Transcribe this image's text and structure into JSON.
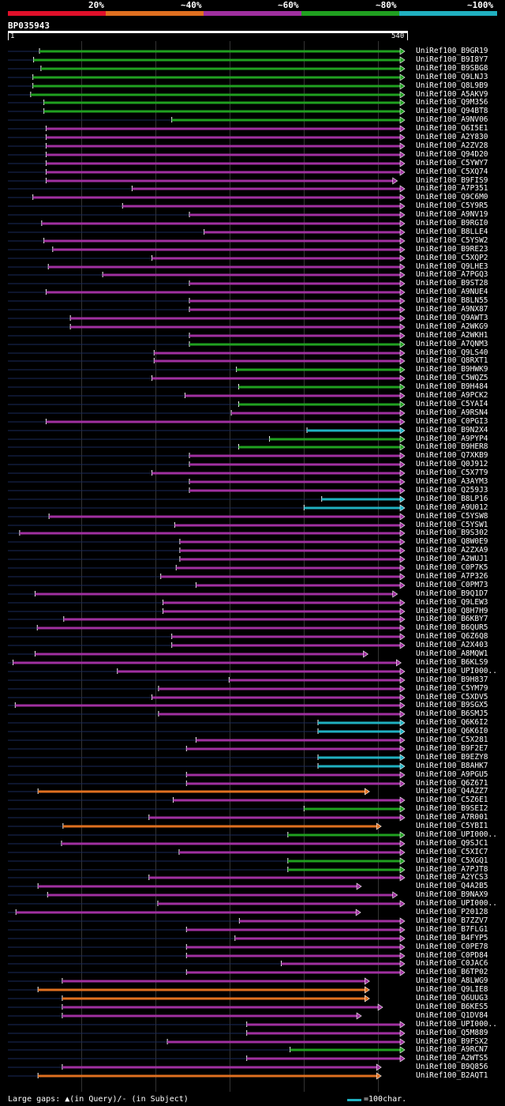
{
  "legend": {
    "labels": [
      "20%",
      "~40%",
      "~60%",
      "~80%",
      "~100%"
    ],
    "colors": [
      "#e0102a",
      "#e07020",
      "#a030a0",
      "#20a020",
      "#20b0c0"
    ]
  },
  "query": {
    "id": "BP035943",
    "start": "1",
    "end": "540",
    "length": 540
  },
  "footer": {
    "gaps": "Large gaps: ▲(in Query)/- (in Subject)",
    "scale": "=100char."
  },
  "hits": [
    {
      "name": "UniRef100_B9GR19",
      "start": 44,
      "end": 540,
      "color": "green"
    },
    {
      "name": "UniRef100_B9I8Y7",
      "start": 36,
      "end": 540,
      "color": "green"
    },
    {
      "name": "UniRef100_B9SBG8",
      "start": 46,
      "end": 540,
      "color": "green"
    },
    {
      "name": "UniRef100_Q9LNJ3",
      "start": 35,
      "end": 540,
      "color": "green"
    },
    {
      "name": "UniRef100_Q8L9B9",
      "start": 35,
      "end": 540,
      "color": "green"
    },
    {
      "name": "UniRef100_A5AKV9",
      "start": 32,
      "end": 540,
      "color": "green"
    },
    {
      "name": "UniRef100_Q9M356",
      "start": 50,
      "end": 540,
      "color": "green"
    },
    {
      "name": "UniRef100_Q94BT8",
      "start": 50,
      "end": 540,
      "color": "green"
    },
    {
      "name": "UniRef100_A9NV06",
      "start": 224,
      "end": 540,
      "color": "green"
    },
    {
      "name": "UniRef100_Q6I5E1",
      "start": 53,
      "end": 540,
      "color": "purple"
    },
    {
      "name": "UniRef100_A2Y830",
      "start": 53,
      "end": 540,
      "color": "purple"
    },
    {
      "name": "UniRef100_A2ZV28",
      "start": 53,
      "end": 540,
      "color": "purple"
    },
    {
      "name": "UniRef100_Q94D20",
      "start": 53,
      "end": 540,
      "color": "purple"
    },
    {
      "name": "UniRef100_C5YWY7",
      "start": 53,
      "end": 540,
      "color": "purple"
    },
    {
      "name": "UniRef100_C5XQ74",
      "start": 53,
      "end": 540,
      "color": "purple"
    },
    {
      "name": "UniRef100_B9FIS9",
      "start": 53,
      "end": 530,
      "color": "purple"
    },
    {
      "name": "UniRef100_A7P351",
      "start": 170,
      "end": 540,
      "color": "purple"
    },
    {
      "name": "UniRef100_Q9C6M0",
      "start": 35,
      "end": 540,
      "color": "purple"
    },
    {
      "name": "UniRef100_C5Y9R5",
      "start": 157,
      "end": 540,
      "color": "purple"
    },
    {
      "name": "UniRef100_A9NV19",
      "start": 248,
      "end": 540,
      "color": "purple"
    },
    {
      "name": "UniRef100_B9RGI0",
      "start": 47,
      "end": 540,
      "color": "purple"
    },
    {
      "name": "UniRef100_B8LLE4",
      "start": 268,
      "end": 540,
      "color": "purple"
    },
    {
      "name": "UniRef100_C5YSW2",
      "start": 50,
      "end": 540,
      "color": "purple"
    },
    {
      "name": "UniRef100_B9RE23",
      "start": 62,
      "end": 540,
      "color": "purple"
    },
    {
      "name": "UniRef100_C5XQP2",
      "start": 197,
      "end": 540,
      "color": "purple"
    },
    {
      "name": "UniRef100_Q9LHE3",
      "start": 56,
      "end": 540,
      "color": "purple"
    },
    {
      "name": "UniRef100_A7PGQ3",
      "start": 130,
      "end": 540,
      "color": "purple"
    },
    {
      "name": "UniRef100_B9ST28",
      "start": 248,
      "end": 540,
      "color": "purple"
    },
    {
      "name": "UniRef100_A9NUE4",
      "start": 53,
      "end": 540,
      "color": "purple"
    },
    {
      "name": "UniRef100_B8LN55",
      "start": 248,
      "end": 540,
      "color": "purple"
    },
    {
      "name": "UniRef100_A9NX87",
      "start": 248,
      "end": 540,
      "color": "purple"
    },
    {
      "name": "UniRef100_Q9AWT3",
      "start": 86,
      "end": 540,
      "color": "purple"
    },
    {
      "name": "UniRef100_A2WKG9",
      "start": 86,
      "end": 540,
      "color": "purple"
    },
    {
      "name": "UniRef100_A2WKH1",
      "start": 248,
      "end": 540,
      "color": "purple"
    },
    {
      "name": "UniRef100_A7QNM3",
      "start": 248,
      "end": 540,
      "color": "green"
    },
    {
      "name": "UniRef100_Q9LS40",
      "start": 200,
      "end": 540,
      "color": "purple"
    },
    {
      "name": "UniRef100_Q8RXT1",
      "start": 200,
      "end": 540,
      "color": "purple"
    },
    {
      "name": "UniRef100_B9HWK9",
      "start": 312,
      "end": 540,
      "color": "green"
    },
    {
      "name": "UniRef100_C5WQZ5",
      "start": 197,
      "end": 540,
      "color": "purple"
    },
    {
      "name": "UniRef100_B9H484",
      "start": 315,
      "end": 540,
      "color": "green"
    },
    {
      "name": "UniRef100_A9PCK2",
      "start": 242,
      "end": 540,
      "color": "purple"
    },
    {
      "name": "UniRef100_C5YAI4",
      "start": 315,
      "end": 540,
      "color": "green"
    },
    {
      "name": "UniRef100_A9RSN4",
      "start": 305,
      "end": 540,
      "color": "purple"
    },
    {
      "name": "UniRef100_C0PGI3",
      "start": 53,
      "end": 540,
      "color": "purple"
    },
    {
      "name": "UniRef100_B9N2X4",
      "start": 408,
      "end": 540,
      "color": "cyan"
    },
    {
      "name": "UniRef100_A9PYP4",
      "start": 357,
      "end": 540,
      "color": "green"
    },
    {
      "name": "UniRef100_B9HER8",
      "start": 315,
      "end": 540,
      "color": "green"
    },
    {
      "name": "UniRef100_Q7XKB9",
      "start": 248,
      "end": 540,
      "color": "purple"
    },
    {
      "name": "UniRef100_Q0J912",
      "start": 248,
      "end": 540,
      "color": "purple"
    },
    {
      "name": "UniRef100_C5X7T9",
      "start": 197,
      "end": 540,
      "color": "purple"
    },
    {
      "name": "UniRef100_A3AYM3",
      "start": 248,
      "end": 540,
      "color": "purple"
    },
    {
      "name": "UniRef100_Q259J3",
      "start": 248,
      "end": 540,
      "color": "purple"
    },
    {
      "name": "UniRef100_B8LP16",
      "start": 428,
      "end": 540,
      "color": "cyan"
    },
    {
      "name": "UniRef100_A9U012",
      "start": 404,
      "end": 540,
      "color": "cyan"
    },
    {
      "name": "UniRef100_C5YSW8",
      "start": 57,
      "end": 540,
      "color": "purple"
    },
    {
      "name": "UniRef100_C5YSW1",
      "start": 228,
      "end": 540,
      "color": "purple"
    },
    {
      "name": "UniRef100_B9S302",
      "start": 17,
      "end": 540,
      "color": "purple"
    },
    {
      "name": "UniRef100_Q8W0E9",
      "start": 235,
      "end": 540,
      "color": "purple"
    },
    {
      "name": "UniRef100_A2ZXA9",
      "start": 235,
      "end": 540,
      "color": "purple"
    },
    {
      "name": "UniRef100_A2WUJ1",
      "start": 235,
      "end": 540,
      "color": "purple"
    },
    {
      "name": "UniRef100_C0P7K5",
      "start": 230,
      "end": 540,
      "color": "purple"
    },
    {
      "name": "UniRef100_A7P326",
      "start": 209,
      "end": 540,
      "color": "purple"
    },
    {
      "name": "UniRef100_C0PM73",
      "start": 257,
      "end": 540,
      "color": "purple"
    },
    {
      "name": "UniRef100_B9Q1D7",
      "start": 38,
      "end": 530,
      "color": "purple"
    },
    {
      "name": "UniRef100_Q9LEW3",
      "start": 212,
      "end": 540,
      "color": "purple"
    },
    {
      "name": "UniRef100_Q8H7H9",
      "start": 212,
      "end": 540,
      "color": "purple"
    },
    {
      "name": "UniRef100_B6KBY7",
      "start": 77,
      "end": 540,
      "color": "purple"
    },
    {
      "name": "UniRef100_B6QUR5",
      "start": 41,
      "end": 540,
      "color": "purple"
    },
    {
      "name": "UniRef100_Q6Z6Q8",
      "start": 224,
      "end": 540,
      "color": "purple"
    },
    {
      "name": "UniRef100_A2X403",
      "start": 224,
      "end": 540,
      "color": "purple"
    },
    {
      "name": "UniRef100_A8MQW1",
      "start": 38,
      "end": 490,
      "color": "purple"
    },
    {
      "name": "UniRef100_B6KLS9",
      "start": 8,
      "end": 535,
      "color": "purple"
    },
    {
      "name": "UniRef100_UPI000..",
      "start": 150,
      "end": 540,
      "color": "purple"
    },
    {
      "name": "UniRef100_B9H837",
      "start": 302,
      "end": 540,
      "color": "purple"
    },
    {
      "name": "UniRef100_C5YM79",
      "start": 206,
      "end": 540,
      "color": "purple"
    },
    {
      "name": "UniRef100_C5XDV5",
      "start": 197,
      "end": 540,
      "color": "purple"
    },
    {
      "name": "UniRef100_B9SGX5",
      "start": 11,
      "end": 540,
      "color": "purple"
    },
    {
      "name": "UniRef100_B6SMJ5",
      "start": 206,
      "end": 540,
      "color": "purple"
    },
    {
      "name": "UniRef100_Q6K6I2",
      "start": 423,
      "end": 540,
      "color": "cyan"
    },
    {
      "name": "UniRef100_Q6K6I0",
      "start": 423,
      "end": 540,
      "color": "cyan"
    },
    {
      "name": "UniRef100_C5X281",
      "start": 257,
      "end": 540,
      "color": "purple"
    },
    {
      "name": "UniRef100_B9F2E7",
      "start": 244,
      "end": 540,
      "color": "purple"
    },
    {
      "name": "UniRef100_B9EZY8",
      "start": 423,
      "end": 540,
      "color": "cyan"
    },
    {
      "name": "UniRef100_B8AHK7",
      "start": 423,
      "end": 540,
      "color": "cyan"
    },
    {
      "name": "UniRef100_A9PGU5",
      "start": 244,
      "end": 540,
      "color": "purple"
    },
    {
      "name": "UniRef100_Q6Z671",
      "start": 244,
      "end": 540,
      "color": "purple"
    },
    {
      "name": "UniRef100_Q4AZZ7",
      "start": 42,
      "end": 492,
      "color": "orange"
    },
    {
      "name": "UniRef100_C5Z6E1",
      "start": 226,
      "end": 540,
      "color": "purple"
    },
    {
      "name": "UniRef100_B9SEI2",
      "start": 404,
      "end": 540,
      "color": "green"
    },
    {
      "name": "UniRef100_A7R001",
      "start": 193,
      "end": 540,
      "color": "purple"
    },
    {
      "name": "UniRef100_C5YBI1",
      "start": 76,
      "end": 508,
      "color": "orange"
    },
    {
      "name": "UniRef100_UPI000..",
      "start": 382,
      "end": 540,
      "color": "green"
    },
    {
      "name": "UniRef100_Q9SJC1",
      "start": 74,
      "end": 540,
      "color": "purple"
    },
    {
      "name": "UniRef100_C5XIC7",
      "start": 234,
      "end": 540,
      "color": "purple"
    },
    {
      "name": "UniRef100_C5XGQ1",
      "start": 382,
      "end": 540,
      "color": "green"
    },
    {
      "name": "UniRef100_A7PJT8",
      "start": 382,
      "end": 540,
      "color": "green"
    },
    {
      "name": "UniRef100_A2YCS3",
      "start": 193,
      "end": 540,
      "color": "purple"
    },
    {
      "name": "UniRef100_Q4A2B5",
      "start": 42,
      "end": 481,
      "color": "purple"
    },
    {
      "name": "UniRef100_B9NAX9",
      "start": 55,
      "end": 530,
      "color": "purple"
    },
    {
      "name": "UniRef100_UPI000..",
      "start": 205,
      "end": 540,
      "color": "purple"
    },
    {
      "name": "UniRef100_P20128",
      "start": 12,
      "end": 480,
      "color": "purple"
    },
    {
      "name": "UniRef100_B7ZZV7",
      "start": 316,
      "end": 540,
      "color": "purple"
    },
    {
      "name": "UniRef100_B7FLG1",
      "start": 244,
      "end": 540,
      "color": "purple"
    },
    {
      "name": "UniRef100_B4FYP5",
      "start": 310,
      "end": 540,
      "color": "purple"
    },
    {
      "name": "UniRef100_C0PE78",
      "start": 244,
      "end": 540,
      "color": "purple"
    },
    {
      "name": "UniRef100_C0PD84",
      "start": 244,
      "end": 540,
      "color": "purple"
    },
    {
      "name": "UniRef100_C0JAC6",
      "start": 373,
      "end": 540,
      "color": "purple"
    },
    {
      "name": "UniRef100_B6TP02",
      "start": 244,
      "end": 540,
      "color": "purple"
    },
    {
      "name": "UniRef100_A8LWG9",
      "start": 75,
      "end": 492,
      "color": "purple"
    },
    {
      "name": "UniRef100_Q9LIE8",
      "start": 42,
      "end": 492,
      "color": "orange"
    },
    {
      "name": "UniRef100_Q6UUG3",
      "start": 75,
      "end": 492,
      "color": "orange"
    },
    {
      "name": "UniRef100_B6KES5",
      "start": 75,
      "end": 510,
      "color": "purple"
    },
    {
      "name": "UniRef100_Q1DV84",
      "start": 75,
      "end": 481,
      "color": "purple"
    },
    {
      "name": "UniRef100_UPI000..",
      "start": 326,
      "end": 540,
      "color": "purple"
    },
    {
      "name": "UniRef100_Q5M889",
      "start": 326,
      "end": 540,
      "color": "purple"
    },
    {
      "name": "UniRef100_B9FSX2",
      "start": 218,
      "end": 540,
      "color": "purple"
    },
    {
      "name": "UniRef100_A9RCN7",
      "start": 385,
      "end": 540,
      "color": "green"
    },
    {
      "name": "UniRef100_A2WTS5",
      "start": 326,
      "end": 540,
      "color": "purple"
    },
    {
      "name": "UniRef100_B9Q856",
      "start": 75,
      "end": 508,
      "color": "purple"
    },
    {
      "name": "UniRef100_B2AQT1",
      "start": 42,
      "end": 508,
      "color": "orange"
    }
  ]
}
